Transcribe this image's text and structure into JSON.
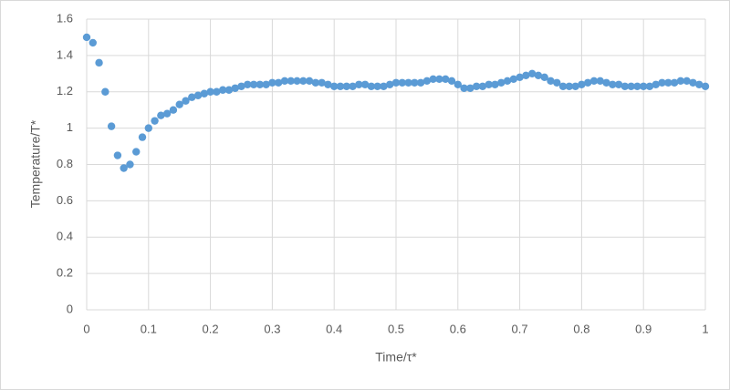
{
  "chart_data": {
    "type": "scatter",
    "x_label": "Time/τ*",
    "y_label": "Temperature/T*",
    "x": [
      0,
      0.01,
      0.02,
      0.03,
      0.04,
      0.05,
      0.06,
      0.07,
      0.08,
      0.09,
      0.1,
      0.11,
      0.12,
      0.13,
      0.14,
      0.15,
      0.16,
      0.17,
      0.18,
      0.19,
      0.2,
      0.21,
      0.22,
      0.23,
      0.24,
      0.25,
      0.26,
      0.27,
      0.28,
      0.29,
      0.3,
      0.31,
      0.32,
      0.33,
      0.34,
      0.35,
      0.36,
      0.37,
      0.38,
      0.39,
      0.4,
      0.41,
      0.42,
      0.43,
      0.44,
      0.45,
      0.46,
      0.47,
      0.48,
      0.49,
      0.5,
      0.51,
      0.52,
      0.53,
      0.54,
      0.55,
      0.56,
      0.57,
      0.58,
      0.59,
      0.6,
      0.61,
      0.62,
      0.63,
      0.64,
      0.65,
      0.66,
      0.67,
      0.68,
      0.69,
      0.7,
      0.71,
      0.72,
      0.73,
      0.74,
      0.75,
      0.76,
      0.77,
      0.78,
      0.79,
      0.8,
      0.81,
      0.82,
      0.83,
      0.84,
      0.85,
      0.86,
      0.87,
      0.88,
      0.89,
      0.9,
      0.91,
      0.92,
      0.93,
      0.94,
      0.95,
      0.96,
      0.97,
      0.98,
      0.99,
      1
    ],
    "values": [
      1.5,
      1.47,
      1.36,
      1.2,
      1.01,
      0.85,
      0.78,
      0.8,
      0.87,
      0.95,
      1.0,
      1.04,
      1.07,
      1.08,
      1.1,
      1.13,
      1.15,
      1.17,
      1.18,
      1.19,
      1.2,
      1.2,
      1.21,
      1.21,
      1.22,
      1.23,
      1.24,
      1.24,
      1.24,
      1.24,
      1.25,
      1.25,
      1.26,
      1.26,
      1.26,
      1.26,
      1.26,
      1.25,
      1.25,
      1.24,
      1.23,
      1.23,
      1.23,
      1.23,
      1.24,
      1.24,
      1.23,
      1.23,
      1.23,
      1.24,
      1.25,
      1.25,
      1.25,
      1.25,
      1.25,
      1.26,
      1.27,
      1.27,
      1.27,
      1.26,
      1.24,
      1.22,
      1.22,
      1.23,
      1.23,
      1.24,
      1.24,
      1.25,
      1.26,
      1.27,
      1.28,
      1.29,
      1.3,
      1.29,
      1.28,
      1.26,
      1.25,
      1.23,
      1.23,
      1.23,
      1.24,
      1.25,
      1.26,
      1.26,
      1.25,
      1.24,
      1.24,
      1.23,
      1.23,
      1.23,
      1.23,
      1.23,
      1.24,
      1.25,
      1.25,
      1.25,
      1.26,
      1.26,
      1.25,
      1.24,
      1.23
    ],
    "color": "#5b9bd5",
    "xlim": [
      0,
      1
    ],
    "xticks": [
      0,
      0.1,
      0.2,
      0.3,
      0.4,
      0.5,
      0.6,
      0.7,
      0.8,
      0.9,
      1
    ],
    "ylim": [
      0,
      1.6
    ],
    "yticks": [
      0,
      0.2,
      0.4,
      0.6,
      0.8,
      1,
      1.2,
      1.4,
      1.6
    ],
    "grid": true
  }
}
